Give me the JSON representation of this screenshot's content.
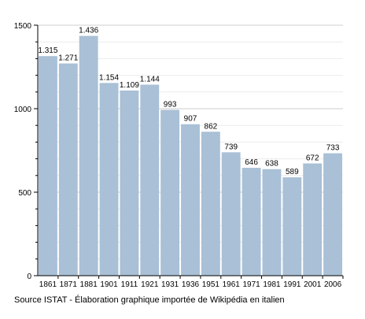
{
  "chart_data": {
    "type": "bar",
    "categories": [
      "1861",
      "1871",
      "1881",
      "1901",
      "1911",
      "1921",
      "1931",
      "1936",
      "1951",
      "1961",
      "1971",
      "1981",
      "1991",
      "2001",
      "2006"
    ],
    "values": [
      1315,
      1271,
      1436,
      1154,
      1109,
      1144,
      993,
      907,
      862,
      739,
      646,
      638,
      589,
      672,
      733
    ],
    "value_labels": [
      "1.315",
      "1.271",
      "1.436",
      "1.154",
      "1.109",
      "1.144",
      "993",
      "907",
      "862",
      "739",
      "646",
      "638",
      "589",
      "672",
      "733"
    ],
    "ylim": [
      0,
      1500
    ],
    "yticks": [
      0,
      500,
      1000,
      1500
    ],
    "ytick_labels": [
      "0",
      "500",
      "1000",
      "1500"
    ],
    "grid": true,
    "xlabel": "",
    "ylabel": "",
    "title": "",
    "bar_color": "#a9c0d6",
    "grid_color": "#d8d8d8"
  },
  "source": "Source ISTAT - Élaboration graphique importée de Wikipédia en italien"
}
